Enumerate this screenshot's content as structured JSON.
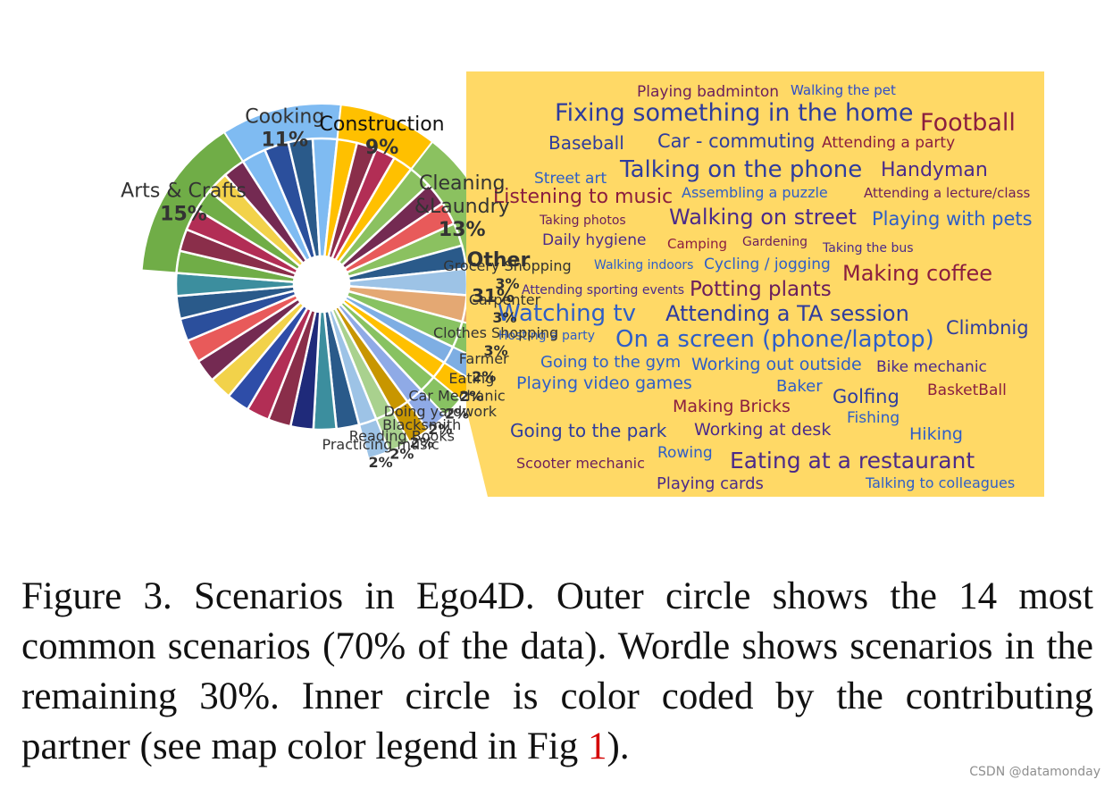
{
  "chart_data": {
    "type": "pie",
    "title": "",
    "series": [
      {
        "label": "Other",
        "display": "31%",
        "value": 31,
        "color": "#FFD966"
      },
      {
        "label": "Arts & Crafts",
        "display": "15%",
        "value": 15,
        "color": "#70AD47"
      },
      {
        "label": "Cooking",
        "display": "11%",
        "value": 11,
        "color": "#7FBBF2"
      },
      {
        "label": "Construction",
        "display": "9%",
        "value": 9,
        "color": "#FFC000"
      },
      {
        "label": "Cleaning &Laundry",
        "display": "13%",
        "value": 13,
        "color": "#8BC160"
      },
      {
        "label": "Grocery Shopping",
        "display": "3%",
        "value": 3,
        "color": "#9DC3E6"
      },
      {
        "label": "Carpenter",
        "display": "3%",
        "value": 3,
        "color": "#E4A873"
      },
      {
        "label": "Clothes Shopping",
        "display": "3%",
        "value": 3,
        "color": "#88C262"
      },
      {
        "label": "Farmer",
        "display": "2%",
        "value": 2,
        "color": "#7EAEE3"
      },
      {
        "label": "Eating",
        "display": "2%",
        "value": 2,
        "color": "#FFC000"
      },
      {
        "label": "Car Mechanic",
        "display": "2%",
        "value": 2,
        "color": "#88C262"
      },
      {
        "label": "Doing yardwork",
        "display": "2%",
        "value": 2,
        "color": "#8FAAE6"
      },
      {
        "label": "Blacksmith",
        "display": "2%",
        "value": 2,
        "color": "#C89600"
      },
      {
        "label": "Reading Books",
        "display": "2%",
        "value": 2,
        "color": "#A9D18E"
      },
      {
        "label": "Practicing music",
        "display": "2%",
        "value": 2,
        "color": "#9DC3E6"
      }
    ],
    "inner_ring_colors": [
      "#2A5A8A",
      "#3C8E9E",
      "#1F2A7A",
      "#8A2E4A",
      "#B22E55",
      "#2E4DA8",
      "#F2D24A",
      "#742A52",
      "#E85A5A",
      "#2B4F9C"
    ],
    "wordle": [
      {
        "text": "Playing badminton",
        "color": "#6B1E5C"
      },
      {
        "text": "Walking the pet",
        "color": "#2E4DC8"
      },
      {
        "text": "Fixing something in the home",
        "color": "#2E3C9E"
      },
      {
        "text": "Football",
        "color": "#8B1E3F"
      },
      {
        "text": "Baseball",
        "color": "#2E3C9E"
      },
      {
        "text": "Car - commuting",
        "color": "#2E3C9E"
      },
      {
        "text": "Attending a party",
        "color": "#8B1E3F"
      },
      {
        "text": "Street art",
        "color": "#2E5EC8"
      },
      {
        "text": "Talking on the phone",
        "color": "#2E3C9E"
      },
      {
        "text": "Handyman",
        "color": "#4B2A8A"
      },
      {
        "text": "Listening to music",
        "color": "#8B1E3F"
      },
      {
        "text": "Assembling a puzzle",
        "color": "#2E5EC8"
      },
      {
        "text": "Attending a lecture/class",
        "color": "#6B1E5C"
      },
      {
        "text": "Taking photos",
        "color": "#6B1E5C"
      },
      {
        "text": "Walking on street",
        "color": "#4B2A8A"
      },
      {
        "text": "Playing with pets",
        "color": "#2E5EC8"
      },
      {
        "text": "Daily hygiene",
        "color": "#4B2A8A"
      },
      {
        "text": "Camping",
        "color": "#8B1E3F"
      },
      {
        "text": "Gardening",
        "color": "#6B1E5C"
      },
      {
        "text": "Taking the bus",
        "color": "#4B2A8A"
      },
      {
        "text": "Walking indoors",
        "color": "#2E5EC8"
      },
      {
        "text": "Cycling / jogging",
        "color": "#2E5EC8"
      },
      {
        "text": "Making coffee",
        "color": "#8B1E3F"
      },
      {
        "text": "Attending sporting events",
        "color": "#4B2A8A"
      },
      {
        "text": "Potting plants",
        "color": "#6B1E5C"
      },
      {
        "text": "Watching tv",
        "color": "#2E5EC8"
      },
      {
        "text": "Attending a TA session",
        "color": "#2E3C9E"
      },
      {
        "text": "Climbnig",
        "color": "#2E3C9E"
      },
      {
        "text": "Hosting a party",
        "color": "#2E5EC8"
      },
      {
        "text": "On a screen (phone/laptop)",
        "color": "#2E5EC8"
      },
      {
        "text": "Going to the gym",
        "color": "#2E5EC8"
      },
      {
        "text": "Working out outside",
        "color": "#2E5EC8"
      },
      {
        "text": "Bike mechanic",
        "color": "#4B2A8A"
      },
      {
        "text": "Playing video games",
        "color": "#2E5EC8"
      },
      {
        "text": "Baker",
        "color": "#2E5EC8"
      },
      {
        "text": "Golfing",
        "color": "#2E3C9E"
      },
      {
        "text": "BasketBall",
        "color": "#8B1E3F"
      },
      {
        "text": "Making Bricks",
        "color": "#8B1E3F"
      },
      {
        "text": "Fishing",
        "color": "#2E5EC8"
      },
      {
        "text": "Going to the park",
        "color": "#2E3C9E"
      },
      {
        "text": "Working at desk",
        "color": "#4B2A8A"
      },
      {
        "text": "Hiking",
        "color": "#2E5EC8"
      },
      {
        "text": "Rowing",
        "color": "#2E5EC8"
      },
      {
        "text": "Scooter mechanic",
        "color": "#6B1E5C"
      },
      {
        "text": "Eating at a restaurant",
        "color": "#4B2A8A"
      },
      {
        "text": "Playing cards",
        "color": "#4B2A8A"
      },
      {
        "text": "Talking to colleagues",
        "color": "#2E5EC8"
      }
    ]
  },
  "caption": {
    "text_before_ref": "Figure 3.  Scenarios in Ego4D. Outer circle shows the 14 most common scenarios (70% of the data). Wordle shows scenarios in the remaining 30%. Inner circle is color coded by the contributing partner (see map color legend in Fig ",
    "ref": "1",
    "text_after_ref": ")."
  },
  "watermark": "CSDN @datamonday"
}
